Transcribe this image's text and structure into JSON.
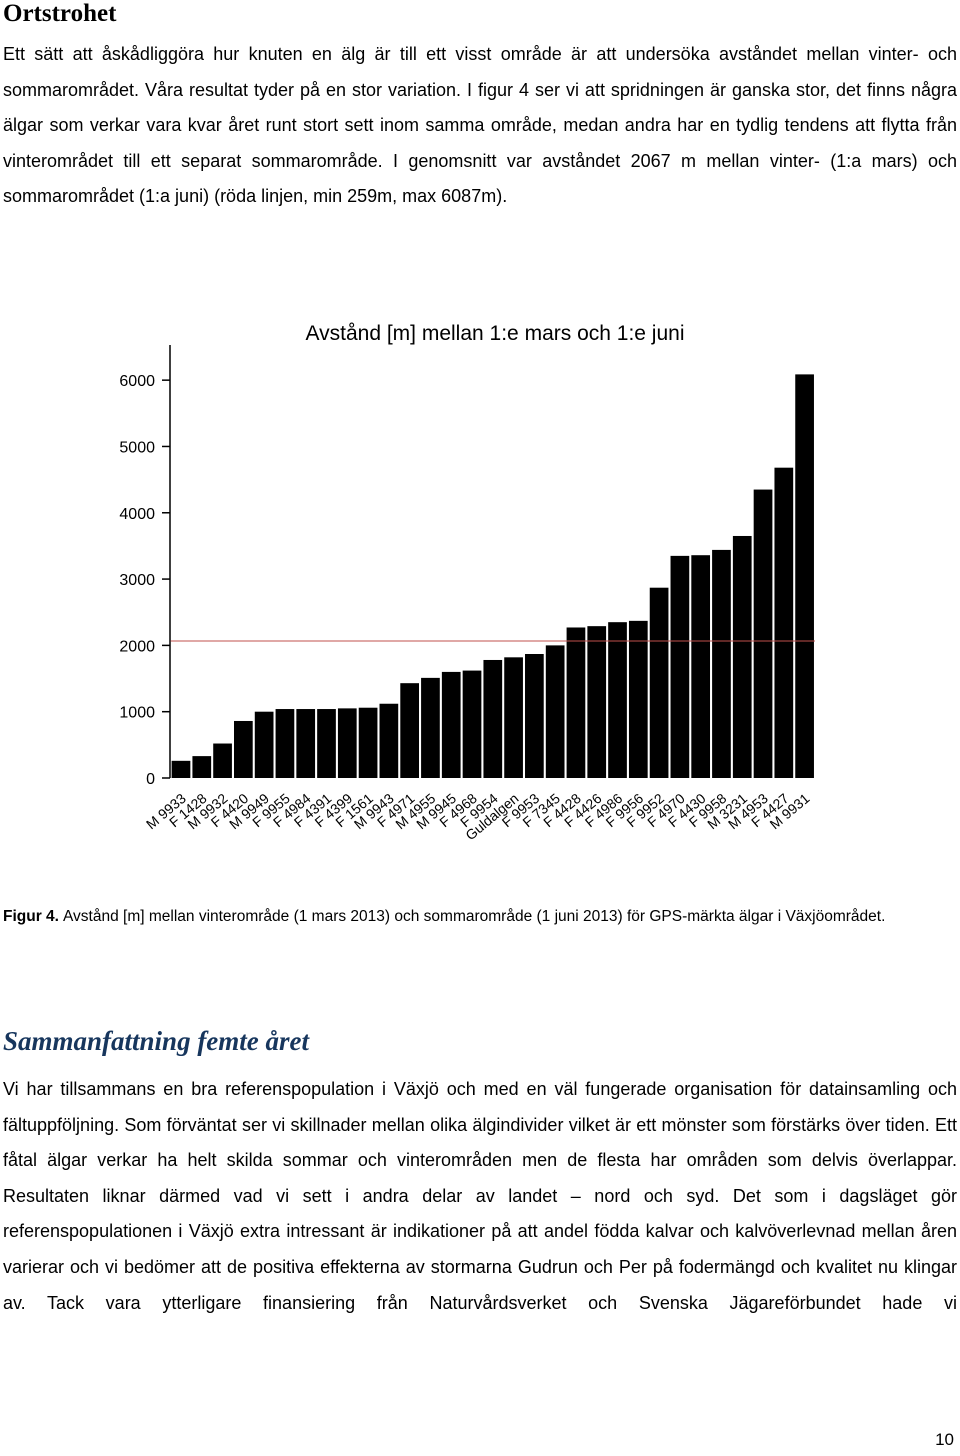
{
  "heading": "Ortstrohet",
  "paragraph1": "Ett sätt att åskådliggöra hur knuten en älg är till ett visst område är att undersöka avståndet mellan vinter- och sommarområdet. Våra resultat tyder på en stor variation. I figur 4 ser vi att spridningen är ganska stor, det finns några älgar som verkar vara kvar året runt stort sett inom samma område, medan andra har en tydlig tendens att flytta från vinterområdet till ett separat sommarområde. I genomsnitt var avståndet 2067 m mellan vinter- (1:a mars) och sommarområdet (1:a juni) (röda linjen, min 259m, max 6087m).",
  "chart_data": {
    "type": "bar",
    "title": "Avstånd [m] mellan 1:e mars och 1:e juni",
    "categories": [
      "M 9933",
      "F 1428",
      "M 9932",
      "F 4420",
      "M 9949",
      "F 9955",
      "F 4984",
      "F 4391",
      "F 4399",
      "F 1561",
      "M 9943",
      "F 4971",
      "M 4955",
      "M 9945",
      "F 4968",
      "F 9954",
      "Guldalgen",
      "F 9953",
      "F 7345",
      "F 4428",
      "F 4426",
      "F 4986",
      "F 9956",
      "F 9952",
      "F 4970",
      "F 4430",
      "F 9958",
      "M 3231",
      "M 4953",
      "F 4427",
      "M 9931"
    ],
    "values": [
      259,
      330,
      520,
      860,
      1000,
      1040,
      1040,
      1040,
      1050,
      1060,
      1120,
      1430,
      1510,
      1600,
      1620,
      1780,
      1820,
      1870,
      2000,
      2270,
      2290,
      2350,
      2370,
      2870,
      3350,
      3360,
      3440,
      3650,
      4350,
      4680,
      6087
    ],
    "color": "#000000",
    "ylim": [
      0,
      6500
    ],
    "yticks": [
      0,
      1000,
      2000,
      3000,
      4000,
      5000,
      6000
    ],
    "reference_line": {
      "value": 2067,
      "color": "#c0504d"
    },
    "grid": false
  },
  "caption": {
    "label": "Figur 4.",
    "text": "Avstånd [m] mellan vinterområde (1 mars 2013) och sommarområde (1 juni 2013) för GPS-märkta älgar i Växjöområdet."
  },
  "heading2": "Sammanfattning femte året",
  "paragraph2": "Vi har tillsammans en bra referenspopulation i Växjö och med en väl fungerade organisation för datainsamling och fältuppföljning. Som förväntat ser vi skillnader mellan olika älgindivider vilket är ett mönster som förstärks över tiden. Ett fåtal älgar verkar ha helt skilda sommar och vinterområden men de flesta har områden som delvis överlappar. Resultaten liknar därmed vad vi sett i andra delar av landet – nord och syd. Det som i dagsläget gör referenspopulationen i Växjö extra intressant är indikationer på att andel födda kalvar och kalvöverlevnad mellan åren varierar och vi bedömer att de positiva effekterna av stormarna Gudrun och Per på fodermängd och kvalitet nu klingar av. Tack vara ytterligare finansiering från Naturvårdsverket och Svenska Jägareförbundet hade vi",
  "page_number": "10"
}
